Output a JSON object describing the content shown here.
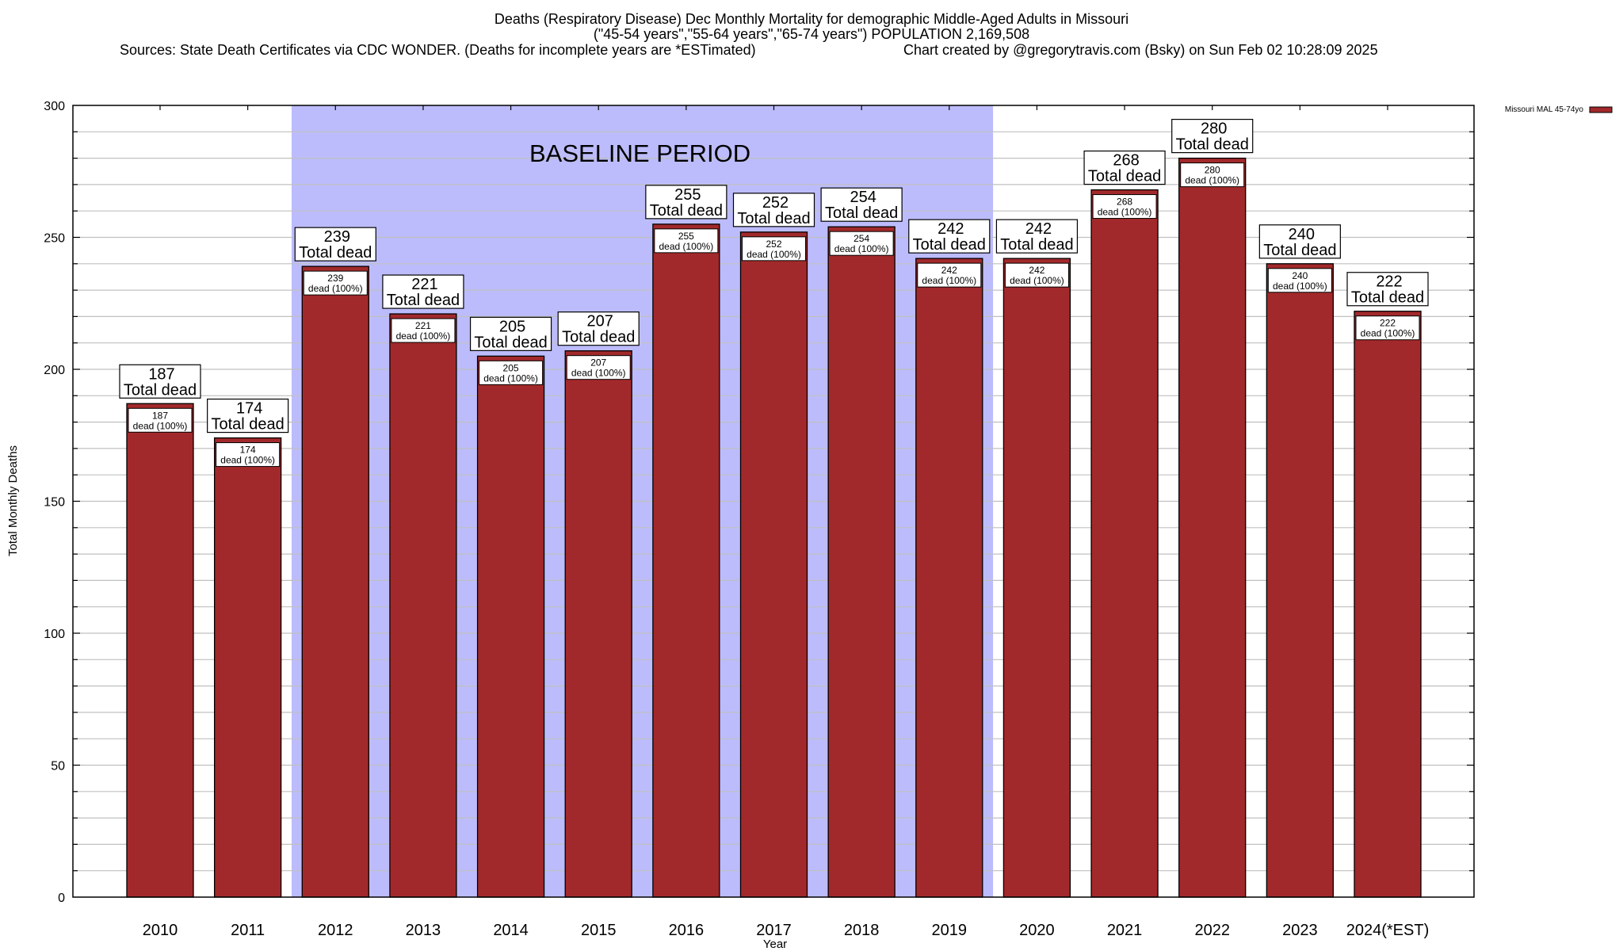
{
  "header": {
    "title": "Deaths (Respiratory Disease) Dec Monthly Mortality for demographic Middle-Aged Adults in Missouri",
    "subtitle": "(\"45-54 years\",\"55-64 years\",\"65-74 years\") POPULATION 2,169,508",
    "sources": "Sources: State Death Certificates via CDC WONDER. (Deaths for incomplete years are *ESTimated)",
    "credit": "Chart created by @gregorytravis.com (Bsky) on Sun Feb 02 10:28:09 2025"
  },
  "colors": {
    "bar": "#a2292b",
    "baseline_shade": "#bcbcfc",
    "grid": "#c0c0c0"
  },
  "chart_data": {
    "type": "bar",
    "title": "Deaths (Respiratory Disease) Dec Monthly Mortality for demographic Middle-Aged Adults in Missouri",
    "xlabel": "Year",
    "ylabel": "Total Monthly Deaths",
    "ylim": [
      0,
      300
    ],
    "yticks": [
      0,
      50,
      100,
      150,
      200,
      250,
      300
    ],
    "minor_grid_step": 10,
    "grid": true,
    "legend": {
      "position": "top-right",
      "entries": [
        "Missouri MAL 45-74yo"
      ]
    },
    "categories": [
      "2010",
      "2011",
      "2012",
      "2013",
      "2014",
      "2015",
      "2016",
      "2017",
      "2018",
      "2019",
      "2020",
      "2021",
      "2022",
      "2023",
      "2024(*EST)"
    ],
    "series": [
      {
        "name": "Missouri MAL 45-74yo",
        "values": [
          187,
          174,
          239,
          221,
          205,
          207,
          255,
          252,
          254,
          242,
          242,
          268,
          280,
          240,
          222
        ]
      }
    ],
    "total_label_suffix": "Total dead",
    "inner_label_suffix": "dead (100%)",
    "baseline": {
      "label": "BASELINE PERIOD",
      "from": "2012",
      "to": "2019"
    }
  }
}
